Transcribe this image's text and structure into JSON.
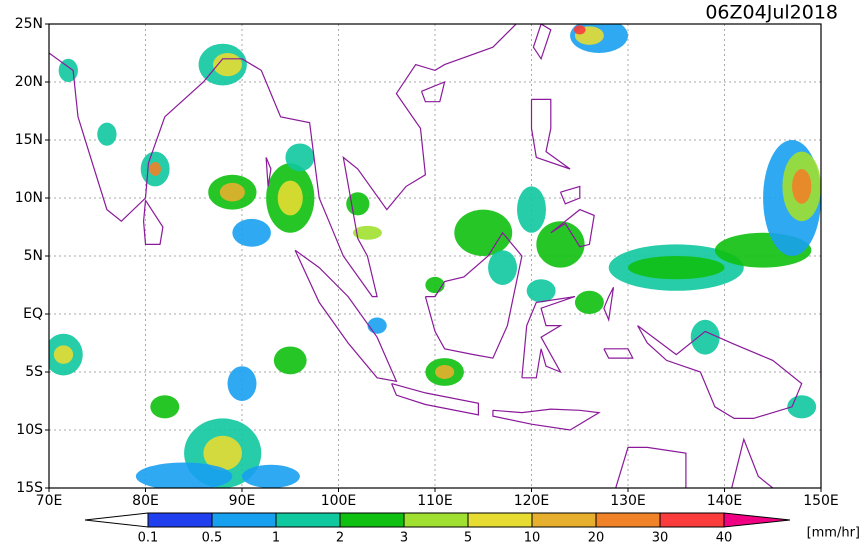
{
  "title": "06Z04Jul2018",
  "lon_labels": [
    "70E",
    "80E",
    "90E",
    "100E",
    "110E",
    "120E",
    "130E",
    "140E",
    "150E"
  ],
  "lat_labels": [
    "25N",
    "20N",
    "15N",
    "10N",
    "5N",
    "EQ",
    "5S",
    "10S",
    "15S"
  ],
  "colorbar": {
    "labels": [
      "0.1",
      "0.5",
      "1",
      "2",
      "3",
      "5",
      "10",
      "20",
      "30",
      "40"
    ],
    "colors": [
      "#ffffff",
      "#2040f0",
      "#18a0f0",
      "#10c8a0",
      "#10c010",
      "#a0e030",
      "#e6dc32",
      "#e6af2d",
      "#f08228",
      "#fa3c3c",
      "#f00082"
    ],
    "unit": "[mm/hr]"
  }
}
